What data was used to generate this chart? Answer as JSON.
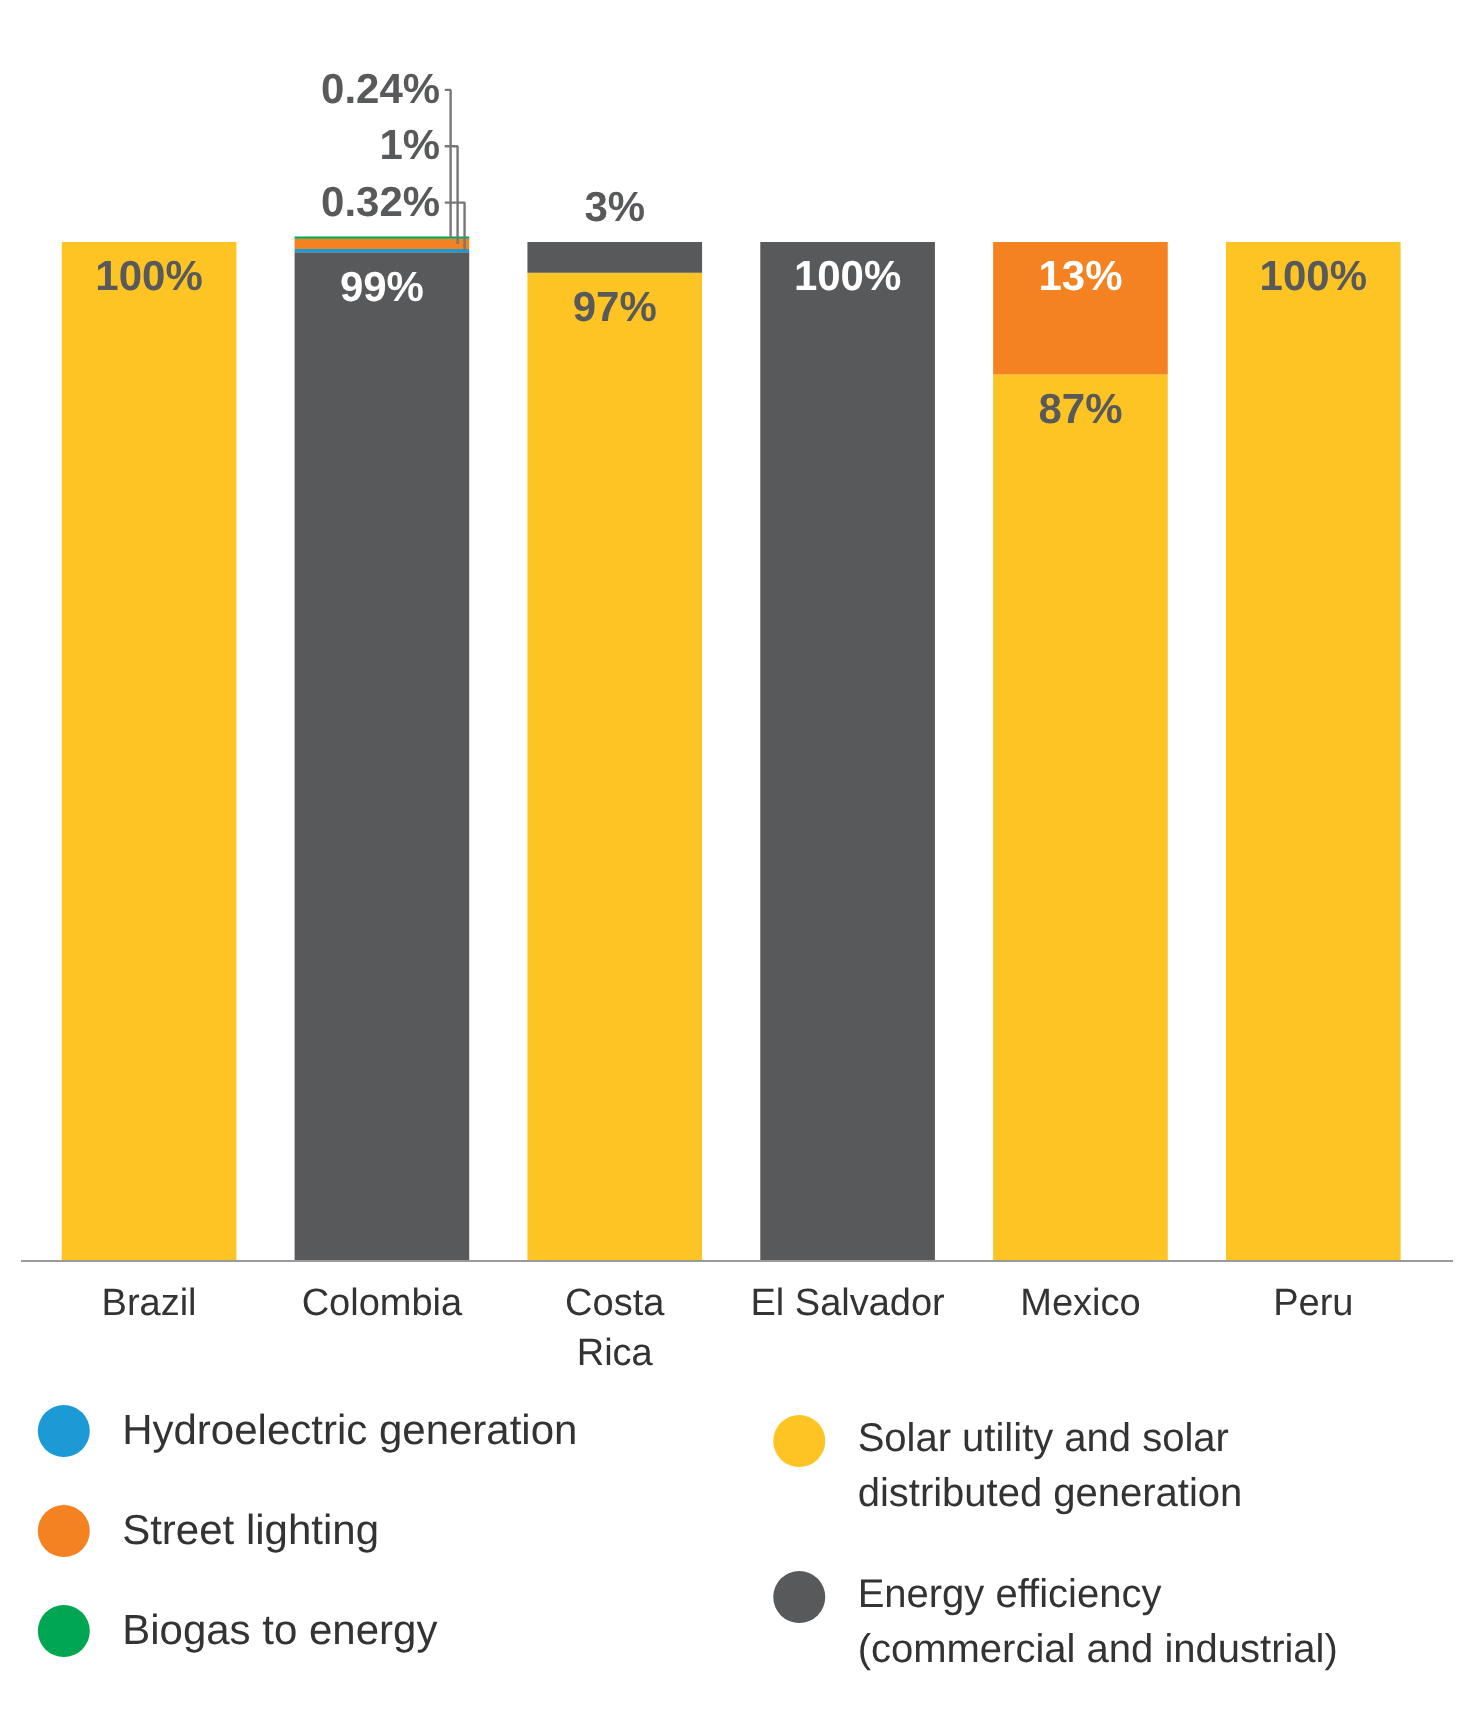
{
  "chart_data": {
    "type": "bar",
    "stacked": true,
    "categories": [
      "Brazil",
      "Colombia",
      "Costa Rica",
      "El Salvador",
      "Mexico",
      "Peru"
    ],
    "series": [
      {
        "name": "Solar utility and solar distributed generation",
        "color": "#fdc423",
        "values": [
          100,
          null,
          97,
          null,
          87,
          100
        ],
        "value_labels": [
          "100%",
          null,
          "97%",
          null,
          "87%",
          "100%"
        ]
      },
      {
        "name": "Energy efficiency (commercial and industrial)",
        "color": "#58595b",
        "values": [
          null,
          99,
          3,
          100,
          null,
          null
        ],
        "value_labels": [
          null,
          "99%",
          "3%",
          "100%",
          null,
          null
        ]
      },
      {
        "name": "Hydroelectric generation",
        "color": "#1b9ad6",
        "values": [
          null,
          0.32,
          null,
          null,
          null,
          null
        ],
        "value_labels": [
          null,
          "0.32%",
          null,
          null,
          null,
          null
        ]
      },
      {
        "name": "Street lighting",
        "color": "#f58220",
        "values": [
          null,
          1,
          null,
          null,
          13,
          null
        ],
        "value_labels": [
          null,
          "1%",
          null,
          null,
          "13%",
          null
        ]
      },
      {
        "name": "Biogas to energy",
        "color": "#00a651",
        "values": [
          null,
          0.24,
          null,
          null,
          null,
          null
        ],
        "value_labels": [
          null,
          "0.24%",
          null,
          null,
          null,
          null
        ]
      }
    ],
    "legend": "bottom"
  }
}
